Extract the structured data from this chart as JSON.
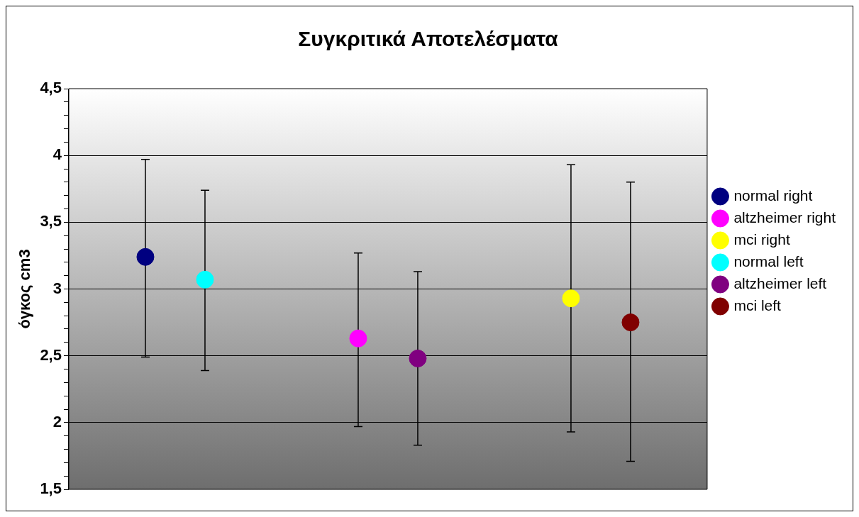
{
  "chart_data": {
    "type": "scatter",
    "title": "Συγκριτικά Αποτελέσματα",
    "ylabel": "όγκος cm3",
    "categories": [
      null,
      null,
      null
    ],
    "ylim": [
      1.5,
      4.5
    ],
    "yticks": [
      {
        "value": 1.5,
        "label": "1,5"
      },
      {
        "value": 1.6,
        "label": null
      },
      {
        "value": 1.7,
        "label": null
      },
      {
        "value": 1.8,
        "label": null
      },
      {
        "value": 1.9,
        "label": null
      },
      {
        "value": 2,
        "label": "2"
      },
      {
        "value": 2.1,
        "label": null
      },
      {
        "value": 2.2,
        "label": null
      },
      {
        "value": 2.3,
        "label": null
      },
      {
        "value": 2.4,
        "label": null
      },
      {
        "value": 2.5,
        "label": "2,5"
      },
      {
        "value": 2.6,
        "label": null
      },
      {
        "value": 2.7,
        "label": null
      },
      {
        "value": 2.8,
        "label": null
      },
      {
        "value": 2.9,
        "label": null
      },
      {
        "value": 3,
        "label": "3"
      },
      {
        "value": 3.1,
        "label": null
      },
      {
        "value": 3.2,
        "label": null
      },
      {
        "value": 3.3,
        "label": null
      },
      {
        "value": 3.4,
        "label": null
      },
      {
        "value": 3.5,
        "label": "3,5"
      },
      {
        "value": 3.6,
        "label": null
      },
      {
        "value": 3.7,
        "label": null
      },
      {
        "value": 3.8,
        "label": null
      },
      {
        "value": 3.9,
        "label": null
      },
      {
        "value": 4,
        "label": "4"
      },
      {
        "value": 4.1,
        "label": null
      },
      {
        "value": 4.2,
        "label": null
      },
      {
        "value": 4.3,
        "label": null
      },
      {
        "value": 4.4,
        "label": null
      },
      {
        "value": 4.5,
        "label": "4,5"
      }
    ],
    "tick_labels": "y",
    "grid": "y",
    "legend": "right",
    "marker": "circle",
    "series": [
      {
        "name": "normal right",
        "color": "#000080",
        "values": [
          3.24,
          null,
          null
        ],
        "errors": [
          [
            2.49,
            3.97
          ],
          null,
          null
        ]
      },
      {
        "name": "altzheimer right",
        "color": "#ff00ff",
        "values": [
          null,
          2.63,
          null
        ],
        "errors": [
          null,
          [
            1.97,
            3.27
          ],
          null
        ]
      },
      {
        "name": "mci right",
        "color": "#ffff00",
        "values": [
          null,
          null,
          2.93
        ],
        "errors": [
          null,
          null,
          [
            1.93,
            3.93
          ]
        ]
      },
      {
        "name": "normal left",
        "color": "#00ffff",
        "values": [
          3.07,
          null,
          null
        ],
        "errors": [
          [
            2.39,
            3.74
          ],
          null,
          null
        ]
      },
      {
        "name": "altzheimer left",
        "color": "#800080",
        "values": [
          null,
          2.48,
          null
        ],
        "errors": [
          null,
          [
            1.83,
            3.13
          ],
          null
        ]
      },
      {
        "name": "mci left",
        "color": "#800000",
        "values": [
          null,
          null,
          2.75
        ],
        "errors": [
          null,
          null,
          [
            1.71,
            3.8
          ]
        ]
      }
    ]
  }
}
